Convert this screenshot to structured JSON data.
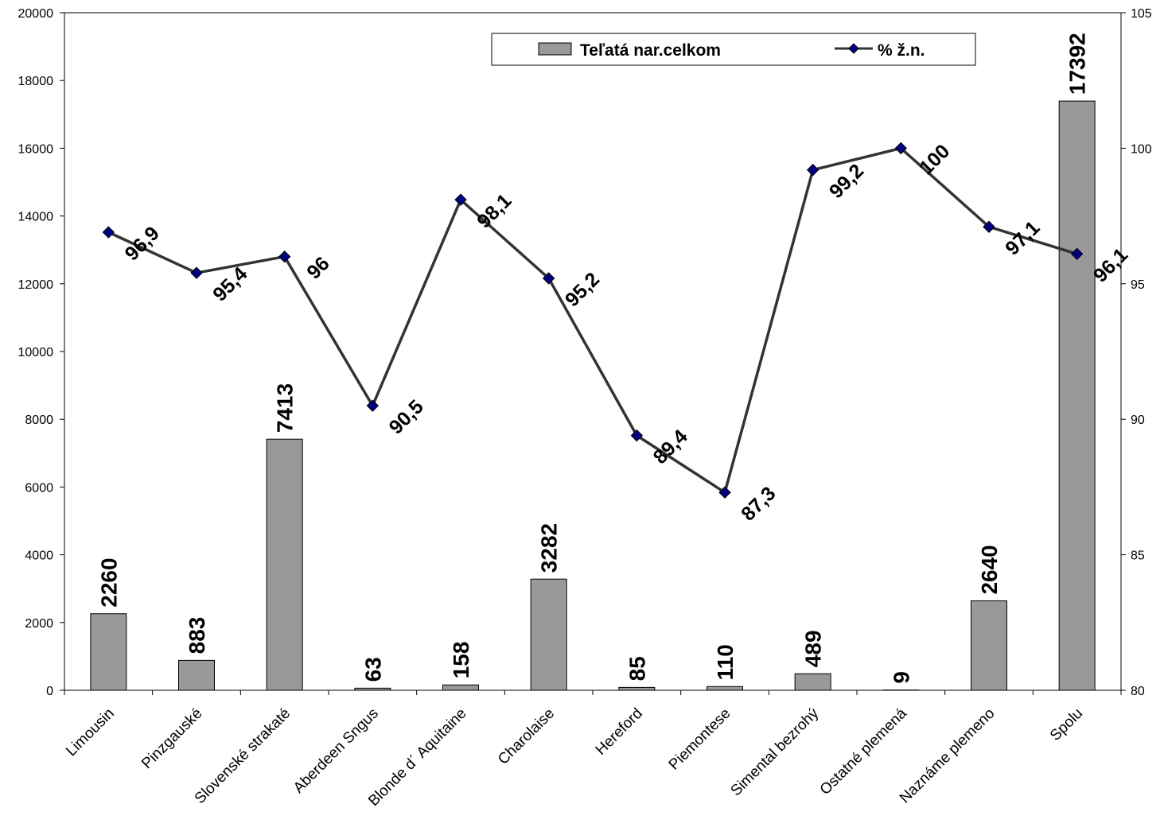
{
  "chart_data": {
    "type": "bar",
    "categories": [
      "Limousin",
      "Pinzgauské",
      "Slovenské strakaté",
      "Aberdeen Sngus",
      "Blonde  d´ Aquitaine",
      "Charolaise",
      "Hereford",
      "Piemontese",
      "Simental bezrohý",
      "Ostatné plemená",
      "Naznáme plemeno",
      "Spolu"
    ],
    "series": [
      {
        "name": "Teľatá nar.celkom",
        "type": "bar",
        "axis": "left",
        "values": [
          2260,
          883,
          7413,
          63,
          158,
          3282,
          85,
          110,
          489,
          9,
          2640,
          17392
        ],
        "labels": [
          "2260",
          "883",
          "7413",
          "63",
          "158",
          "3282",
          "85",
          "110",
          "489",
          "9",
          "2640",
          "17392"
        ],
        "color": "#999999"
      },
      {
        "name": "% ž.n.",
        "type": "line",
        "axis": "right",
        "values": [
          96.9,
          95.4,
          96,
          90.5,
          98.1,
          95.2,
          89.4,
          87.3,
          99.2,
          100,
          97.1,
          96.1
        ],
        "labels": [
          "96,9",
          "95,4",
          "96",
          "90,5",
          "98,1",
          "95,2",
          "89,4",
          "87,3",
          "99,2",
          "100",
          "97,1",
          "96,1"
        ],
        "color": "#333333",
        "marker_color": "#000080"
      }
    ],
    "y_left": {
      "ylim": [
        0,
        20000
      ],
      "ticks": [
        "0",
        "2000",
        "4000",
        "6000",
        "8000",
        "10000",
        "12000",
        "14000",
        "16000",
        "18000",
        "20000"
      ]
    },
    "y_right": {
      "ylim": [
        80,
        105
      ],
      "ticks": [
        "80",
        "85",
        "90",
        "95",
        "100",
        "105"
      ]
    },
    "legend": {
      "placement": "top-right",
      "entries": [
        "Teľatá nar.celkom",
        "% ž.n."
      ]
    },
    "grid": false
  }
}
